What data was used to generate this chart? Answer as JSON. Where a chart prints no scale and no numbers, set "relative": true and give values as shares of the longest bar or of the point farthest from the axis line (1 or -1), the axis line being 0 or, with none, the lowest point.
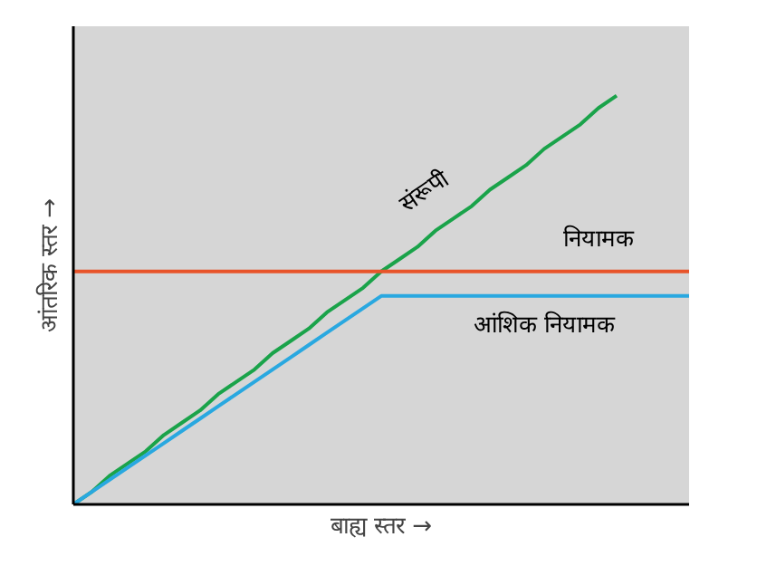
{
  "chart_data": {
    "type": "line",
    "relative": true,
    "xlabel": "बाह्य स्तर →",
    "ylabel": "आंतरिक स्तर →",
    "categories": [
      null,
      null,
      null,
      null,
      null,
      null,
      null,
      null,
      null,
      null,
      null,
      null,
      null,
      null,
      null,
      null,
      null,
      null,
      null,
      null,
      null,
      null,
      null,
      null,
      null,
      null,
      null,
      null,
      null,
      null,
      null,
      null,
      null,
      null,
      null
    ],
    "series": [
      {
        "name": "संरूपी",
        "color": "#1aa34a",
        "values": [
          0,
          0.03,
          0.07,
          0.1,
          0.13,
          0.17,
          0.2,
          0.23,
          0.27,
          0.3,
          0.33,
          0.37,
          0.4,
          0.43,
          0.47,
          0.5,
          0.53,
          0.57,
          0.6,
          0.63,
          0.67,
          0.7,
          0.73,
          0.77,
          0.8,
          0.83,
          0.87,
          0.9,
          0.93,
          0.97,
          1,
          null,
          null,
          null,
          null
        ]
      },
      {
        "name": "नियामक",
        "color": "#e8542a",
        "values": [
          0.57,
          0.57,
          0.57,
          0.57,
          0.57,
          0.57,
          0.57,
          0.57,
          0.57,
          0.57,
          0.57,
          0.57,
          0.57,
          0.57,
          0.57,
          0.57,
          0.57,
          0.57,
          0.57,
          0.57,
          0.57,
          0.57,
          0.57,
          0.57,
          0.57,
          0.57,
          0.57,
          0.57,
          0.57,
          0.57,
          0.57,
          0.57,
          0.57,
          0.57,
          0.57
        ]
      },
      {
        "name": "आंशिक नियामक",
        "color": "#29a8e0",
        "values": [
          0,
          0.03,
          0.06,
          0.09,
          0.12,
          0.15,
          0.18,
          0.21,
          0.24,
          0.27,
          0.3,
          0.33,
          0.36,
          0.39,
          0.42,
          0.45,
          0.48,
          0.51,
          0.51,
          0.51,
          0.51,
          0.51,
          0.51,
          0.51,
          0.51,
          0.51,
          0.51,
          0.51,
          0.51,
          0.51,
          0.51,
          0.51,
          0.51,
          0.51,
          0.51
        ]
      }
    ],
    "marker": "none",
    "line_style": "solid"
  }
}
